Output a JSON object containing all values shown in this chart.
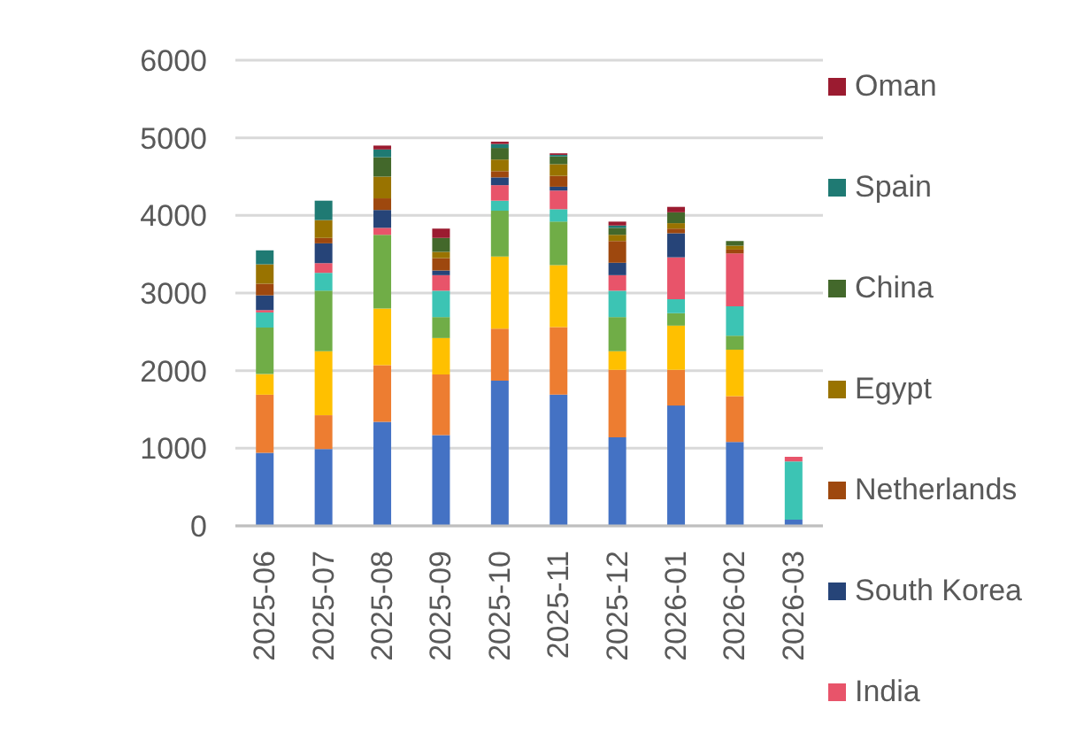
{
  "chart_data": {
    "type": "bar",
    "stacked": true,
    "categories": [
      "2025-06",
      "2025-07",
      "2025-08",
      "2025-09",
      "2025-10",
      "2025-11",
      "2025-12",
      "2026-01",
      "2026-02",
      "2026-03"
    ],
    "ylim": [
      0,
      6000
    ],
    "yticks": [
      0,
      1000,
      2000,
      3000,
      4000,
      5000,
      6000
    ],
    "grid": "y",
    "legend": "right",
    "series": [
      {
        "color": "#4472c4",
        "values": [
          940,
          990,
          1340,
          1170,
          1870,
          1690,
          1140,
          1550,
          1080,
          80
        ]
      },
      {
        "color": "#ed7d31",
        "values": [
          750,
          435,
          730,
          780,
          670,
          870,
          870,
          460,
          590,
          0
        ]
      },
      {
        "color": "#ffc000",
        "values": [
          265,
          825,
          730,
          470,
          930,
          800,
          240,
          570,
          600,
          0
        ]
      },
      {
        "color": "#70ad47",
        "values": [
          600,
          780,
          950,
          270,
          590,
          560,
          440,
          160,
          180,
          0
        ]
      },
      {
        "color": "#3cc4b4",
        "values": [
          195,
          230,
          0,
          340,
          130,
          160,
          340,
          180,
          380,
          750
        ]
      },
      {
        "name": "India",
        "color": "#e8546a",
        "values": [
          30,
          125,
          90,
          200,
          200,
          240,
          200,
          540,
          680,
          60
        ]
      },
      {
        "name": "South Korea",
        "color": "#264478",
        "values": [
          190,
          255,
          230,
          60,
          100,
          50,
          160,
          310,
          0,
          0
        ]
      },
      {
        "name": "Netherlands",
        "color": "#9e480e",
        "values": [
          150,
          70,
          150,
          160,
          80,
          140,
          280,
          60,
          50,
          0
        ]
      },
      {
        "name": "Egypt",
        "color": "#997300",
        "values": [
          250,
          230,
          280,
          80,
          150,
          150,
          80,
          70,
          50,
          0
        ]
      },
      {
        "name": "China",
        "color": "#43682b",
        "values": [
          0,
          0,
          250,
          180,
          150,
          100,
          90,
          140,
          60,
          0
        ]
      },
      {
        "name": "Spain",
        "color": "#1f7a73",
        "values": [
          180,
          250,
          100,
          0,
          50,
          20,
          30,
          0,
          0,
          0
        ]
      },
      {
        "name": "Oman",
        "color": "#9b1b30",
        "values": [
          0,
          0,
          50,
          120,
          30,
          20,
          50,
          70,
          0,
          0
        ]
      }
    ]
  }
}
